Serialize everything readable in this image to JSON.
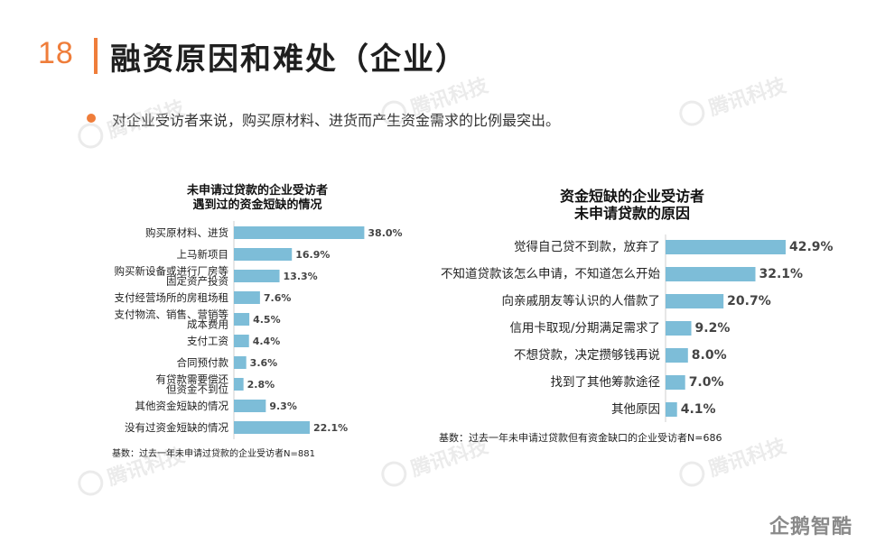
{
  "slide_number": "18",
  "title": "融资原因和难处（企业）",
  "subtitle": "对企业受访者来说，购买原材料、进货而产生资金需求的比例最突出。",
  "watermark_text": "腾讯科技",
  "logo_text": "企鹅智酷",
  "colors": {
    "accent": "#ef7d3a",
    "bar": "#7dbdd8"
  },
  "chart_data": [
    {
      "type": "bar",
      "orientation": "horizontal",
      "title_lines": [
        "未申请过贷款的企业受访者",
        "遇到过的资金短缺的情况"
      ],
      "categories": [
        [
          "购买原材料、进货"
        ],
        [
          "上马新项目"
        ],
        [
          "购买新设备或进行厂房等",
          "固定资产投资"
        ],
        [
          "支付经营场所的房租场租"
        ],
        [
          "支付物流、销售、营销等",
          "成本费用"
        ],
        [
          "支付工资"
        ],
        [
          "合同预付款"
        ],
        [
          "有贷款需要偿还",
          "但资金不到位"
        ],
        [
          "其他资金短缺的情况"
        ],
        [
          "没有过资金短缺的情况"
        ]
      ],
      "values": [
        38.0,
        16.9,
        13.3,
        7.6,
        4.5,
        4.4,
        3.6,
        2.8,
        9.3,
        22.1
      ],
      "value_labels": [
        "38.0%",
        "16.9%",
        "13.3%",
        "7.6%",
        "4.5%",
        "4.4%",
        "3.6%",
        "2.8%",
        "9.3%",
        "22.1%"
      ],
      "footnote": "基数：过去一年未申请过贷款的企业受访者N=881"
    },
    {
      "type": "bar",
      "orientation": "horizontal",
      "title_lines": [
        "资金短缺的企业受访者",
        "未申请贷款的原因"
      ],
      "categories": [
        [
          "觉得自己贷不到款，放弃了"
        ],
        [
          "不知道贷款该怎么申请，不知道怎么开始"
        ],
        [
          "向亲戚朋友等认识的人借款了"
        ],
        [
          "信用卡取现/分期满足需求了"
        ],
        [
          "不想贷款，决定攒够钱再说"
        ],
        [
          "找到了其他筹款途径"
        ],
        [
          "其他原因"
        ]
      ],
      "values": [
        42.9,
        32.1,
        20.7,
        9.2,
        8.0,
        7.0,
        4.1
      ],
      "value_labels": [
        "42.9%",
        "32.1%",
        "20.7%",
        "9.2%",
        "8.0%",
        "7.0%",
        "4.1%"
      ],
      "footnote": "基数：过去一年未申请过贷款但有资金缺口的企业受访者N=686"
    }
  ]
}
